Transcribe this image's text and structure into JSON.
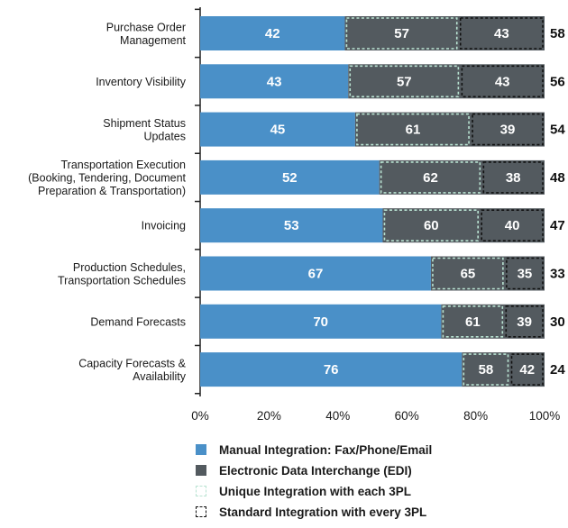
{
  "chart_data": {
    "type": "bar",
    "orientation": "horizontal",
    "stacked": true,
    "categories": [
      [
        "Purchase Order",
        "Management"
      ],
      [
        "Inventory Visibility"
      ],
      [
        "Shipment Status",
        "Updates"
      ],
      [
        "Transportation Execution",
        "(Booking, Tendering, Document",
        "Preparation & Transportation)"
      ],
      [
        "Invoicing"
      ],
      [
        "Production Schedules,",
        "Transportation Schedules"
      ],
      [
        "Demand Forecasts"
      ],
      [
        "Capacity Forecasts &",
        "Availability"
      ]
    ],
    "series": [
      {
        "name": "Manual Integration: Fax/Phone/Email",
        "values": [
          42,
          43,
          45,
          52,
          53,
          67,
          70,
          76
        ],
        "color": "#4a90c8"
      },
      {
        "name": "Electronic Data Interchange (EDI)",
        "values": [
          58,
          56,
          54,
          48,
          47,
          33,
          30,
          24
        ],
        "color": "#535a5f"
      }
    ],
    "edi_breakdown": {
      "unique_integration_with_each_3pl": [
        57,
        57,
        61,
        62,
        60,
        65,
        61,
        58
      ],
      "standard_integration_with_every_3pl": [
        43,
        43,
        39,
        38,
        40,
        35,
        39,
        42
      ]
    },
    "breakdown_series": [
      {
        "name": "Unique Integration with each 3PL",
        "border_color": "#b9e3d2",
        "style": "dashed"
      },
      {
        "name": "Standard Integration with every 3PL",
        "border_color": "#111111",
        "style": "dashed"
      }
    ],
    "x_ticks": [
      "0%",
      "20%",
      "40%",
      "60%",
      "80%",
      "100%"
    ],
    "xlim": [
      0,
      100
    ],
    "legend_position": "bottom",
    "grid": false
  }
}
